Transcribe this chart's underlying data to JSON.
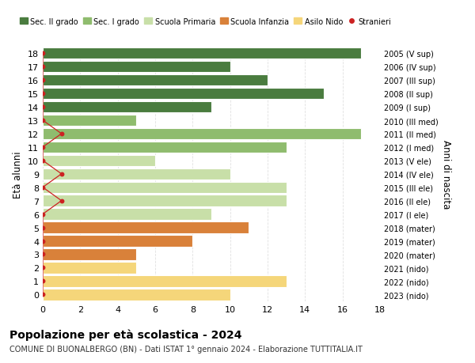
{
  "ages": [
    18,
    17,
    16,
    15,
    14,
    13,
    12,
    11,
    10,
    9,
    8,
    7,
    6,
    5,
    4,
    3,
    2,
    1,
    0
  ],
  "right_labels": [
    "2005 (V sup)",
    "2006 (IV sup)",
    "2007 (III sup)",
    "2008 (II sup)",
    "2009 (I sup)",
    "2010 (III med)",
    "2011 (II med)",
    "2012 (I med)",
    "2013 (V ele)",
    "2014 (IV ele)",
    "2015 (III ele)",
    "2016 (II ele)",
    "2017 (I ele)",
    "2018 (mater)",
    "2019 (mater)",
    "2020 (mater)",
    "2021 (nido)",
    "2022 (nido)",
    "2023 (nido)"
  ],
  "bar_values": [
    17,
    10,
    12,
    15,
    9,
    5,
    17,
    13,
    6,
    10,
    13,
    13,
    9,
    11,
    8,
    5,
    5,
    13,
    10
  ],
  "bar_colors": [
    "#4a7c3f",
    "#4a7c3f",
    "#4a7c3f",
    "#4a7c3f",
    "#4a7c3f",
    "#8fbc6e",
    "#8fbc6e",
    "#8fbc6e",
    "#c8dfa8",
    "#c8dfa8",
    "#c8dfa8",
    "#c8dfa8",
    "#c8dfa8",
    "#d9813a",
    "#d9813a",
    "#d9813a",
    "#f5d67a",
    "#f5d67a",
    "#f5d67a"
  ],
  "stranieri_x": [
    0,
    0,
    0,
    0,
    0,
    0,
    1,
    0,
    0,
    1,
    0,
    1,
    0,
    0,
    0,
    0,
    0,
    0,
    0
  ],
  "legend_labels": [
    "Sec. II grado",
    "Sec. I grado",
    "Scuola Primaria",
    "Scuola Infanzia",
    "Asilo Nido",
    "Stranieri"
  ],
  "legend_colors": [
    "#4a7c3f",
    "#8fbc6e",
    "#c8dfa8",
    "#d9813a",
    "#f5d67a",
    "#cc2222"
  ],
  "title": "Popolazione per età scolastica - 2024",
  "subtitle": "COMUNE DI BUONALBERGO (BN) - Dati ISTAT 1° gennaio 2024 - Elaborazione TUTTITALIA.IT",
  "ylabel_left": "Età alunni",
  "ylabel_right": "Anni di nascita",
  "xlim": [
    0,
    18
  ],
  "xticks": [
    0,
    2,
    4,
    6,
    8,
    10,
    12,
    14,
    16,
    18
  ],
  "bg_color": "#ffffff",
  "grid_color": "#e0e0e0"
}
